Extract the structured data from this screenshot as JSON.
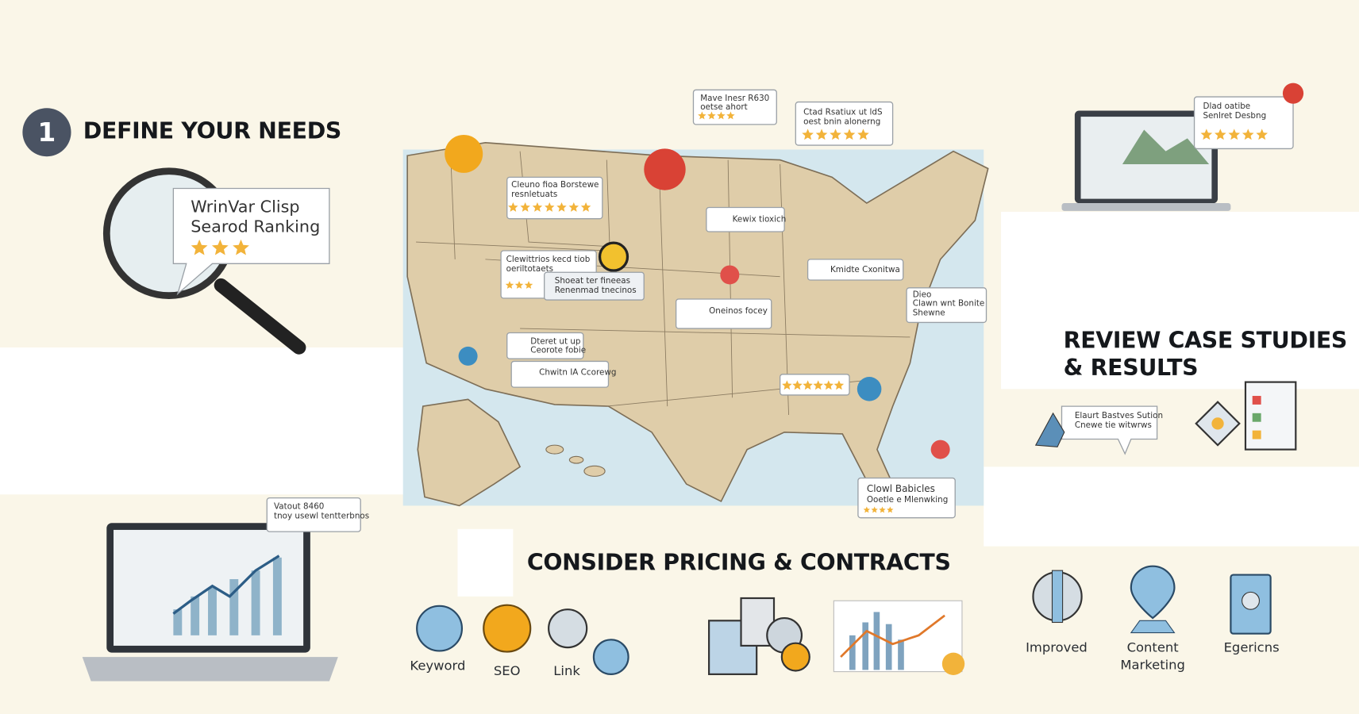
{
  "define": {
    "number": "1",
    "title": "DEFINE YOUR NEEDS",
    "bubble": [
      "WrinVar Clisp",
      "Searod Ranking"
    ]
  },
  "review": {
    "title": [
      "REVIEW CASE STUDIES",
      "& RESULTS"
    ],
    "bubble": [
      "Elaurt Bastves Sution",
      "Cnewe tie witwrws"
    ],
    "laptop_bubble": [
      "Dlad oatibe",
      "Senlret Desbng"
    ]
  },
  "pricing": {
    "title": "CONSIDER PRICING & CONTRACTS",
    "laptop_bubble": [
      "Vatout 8460",
      "tnoy usewl tentterbnos"
    ]
  },
  "icons": [
    {
      "label": [
        "Keyword"
      ]
    },
    {
      "label": [
        "SEO"
      ]
    },
    {
      "label": [
        "Link"
      ]
    },
    {
      "label": [
        "Improved"
      ]
    },
    {
      "label": [
        "Content",
        "Marketing"
      ]
    },
    {
      "label": [
        "Egericns"
      ]
    }
  ],
  "callouts": [
    {
      "lines": [
        "Mave Inesr R630",
        "oetse ahort"
      ]
    },
    {
      "lines": [
        "Ctad Rsatiux ut ldS",
        "oest bnin alonerng"
      ]
    },
    {
      "lines": [
        "Cleuno fioa Borstewe",
        "resnletuats"
      ]
    },
    {
      "lines": [
        "Kewix tioxich"
      ]
    },
    {
      "lines": [
        "Clewittrios kecd tiob",
        "oeriltotaets"
      ]
    },
    {
      "lines": [
        "Shoeat ter fineeas",
        "Renenmad tnecinos"
      ]
    },
    {
      "lines": [
        "Oneinos focey"
      ]
    },
    {
      "lines": [
        "Kmidte Cxonitwa"
      ]
    },
    {
      "lines": [
        "Dieo",
        "Clawn wnt Bonite",
        "Shewne"
      ]
    },
    {
      "lines": [
        "Dteret ut up",
        "Ceorote fobie"
      ]
    },
    {
      "lines": [
        "Chwitn IA Ccorewg"
      ]
    },
    {
      "lines": [
        "Clowl Babicles",
        "Ooetle e Mlenwking"
      ]
    }
  ]
}
